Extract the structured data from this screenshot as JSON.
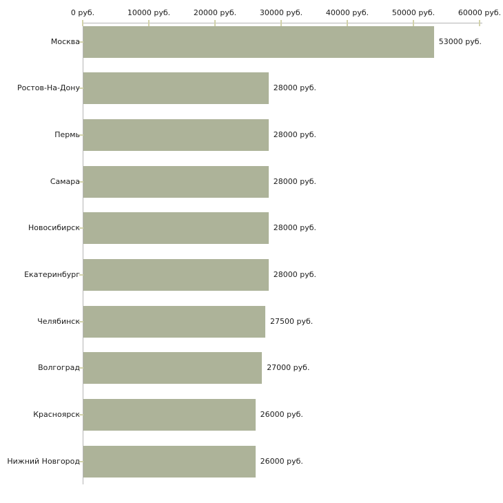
{
  "chart_data": {
    "type": "bar",
    "orientation": "horizontal",
    "title": "",
    "xlabel": "",
    "ylabel": "",
    "unit": "руб.",
    "categories": [
      "Москва",
      "Ростов-На-Дону",
      "Пермь",
      "Самара",
      "Новосибирск",
      "Екатеринбург",
      "Челябинск",
      "Волгоград",
      "Красноярск",
      "Нижний Новгород"
    ],
    "values": [
      53000,
      28000,
      28000,
      28000,
      28000,
      28000,
      27500,
      27000,
      26000,
      26000
    ],
    "value_labels": [
      "53000 руб.",
      "28000 руб.",
      "28000 руб.",
      "28000 руб.",
      "28000 руб.",
      "28000 руб.",
      "27500 руб.",
      "27000 руб.",
      "26000 руб.",
      "26000 руб."
    ],
    "xlim": [
      0,
      60000
    ],
    "x_ticks": [
      0,
      10000,
      20000,
      30000,
      40000,
      50000,
      60000
    ],
    "x_tick_labels": [
      "0 руб.",
      "10000 руб.",
      "20000 руб.",
      "30000 руб.",
      "40000 руб.",
      "50000 руб.",
      "60000 руб."
    ],
    "axis_position": "top",
    "grid": false,
    "legend": false,
    "colors": {
      "bar": "#adb399",
      "axis": "#b5b5b5",
      "tick": "#d2d2aa",
      "text": "#1a1a1a",
      "background": "#ffffff"
    }
  }
}
